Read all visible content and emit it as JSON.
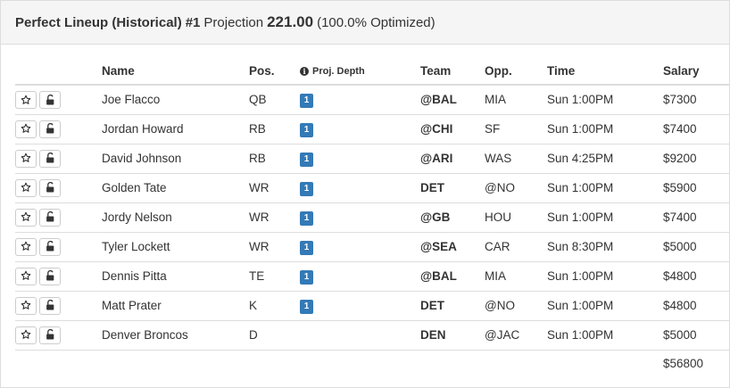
{
  "header": {
    "title": "Perfect Lineup (Historical)",
    "rank": "#1",
    "projection_label": "Projection",
    "projection_value": "221.00",
    "optimized": "(100.0% Optimized)"
  },
  "columns": {
    "name": "Name",
    "pos": "Pos.",
    "depth": "Proj. Depth",
    "team": "Team",
    "opp": "Opp.",
    "time": "Time",
    "salary": "Salary"
  },
  "rows": [
    {
      "name": "Joe Flacco",
      "pos": "QB",
      "depth": "1",
      "team": "@BAL",
      "opp": "MIA",
      "time": "Sun 1:00PM",
      "salary": "$7300"
    },
    {
      "name": "Jordan Howard",
      "pos": "RB",
      "depth": "1",
      "team": "@CHI",
      "opp": "SF",
      "time": "Sun 1:00PM",
      "salary": "$7400"
    },
    {
      "name": "David Johnson",
      "pos": "RB",
      "depth": "1",
      "team": "@ARI",
      "opp": "WAS",
      "time": "Sun 4:25PM",
      "salary": "$9200"
    },
    {
      "name": "Golden Tate",
      "pos": "WR",
      "depth": "1",
      "team": "DET",
      "opp": "@NO",
      "time": "Sun 1:00PM",
      "salary": "$5900"
    },
    {
      "name": "Jordy Nelson",
      "pos": "WR",
      "depth": "1",
      "team": "@GB",
      "opp": "HOU",
      "time": "Sun 1:00PM",
      "salary": "$7400"
    },
    {
      "name": "Tyler Lockett",
      "pos": "WR",
      "depth": "1",
      "team": "@SEA",
      "opp": "CAR",
      "time": "Sun 8:30PM",
      "salary": "$5000"
    },
    {
      "name": "Dennis Pitta",
      "pos": "TE",
      "depth": "1",
      "team": "@BAL",
      "opp": "MIA",
      "time": "Sun 1:00PM",
      "salary": "$4800"
    },
    {
      "name": "Matt Prater",
      "pos": "K",
      "depth": "1",
      "team": "DET",
      "opp": "@NO",
      "time": "Sun 1:00PM",
      "salary": "$4800"
    },
    {
      "name": "Denver Broncos",
      "pos": "D",
      "depth": "",
      "team": "DEN",
      "opp": "@JAC",
      "time": "Sun 1:00PM",
      "salary": "$5000"
    }
  ],
  "total_salary": "$56800",
  "icons": {
    "star": "star-icon",
    "lock": "unlock-icon",
    "info": "info-icon"
  },
  "colors": {
    "badge": "#337ab7",
    "header_bg": "#f5f5f5",
    "border": "#dddddd"
  }
}
